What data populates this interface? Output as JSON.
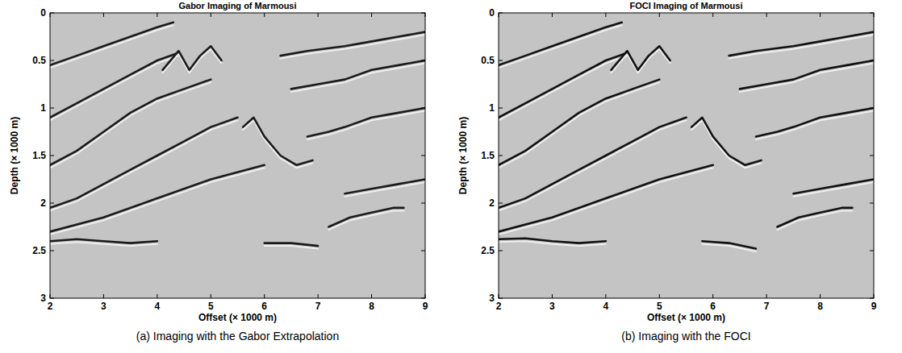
{
  "chart_data": [
    {
      "type": "line",
      "title": "Gabor Imaging of Marmousi",
      "x_label": "Offset (× 1000 m)",
      "y_label": "Depth (× 1000 m)",
      "caption": "(a) Imaging with the Gabor Extrapolation",
      "xlim": [
        2,
        9
      ],
      "xticks": [
        2,
        3,
        4,
        5,
        6,
        7,
        8,
        9
      ],
      "ylim": [
        0,
        3
      ],
      "yticks": [
        0,
        0.5,
        1,
        1.5,
        2,
        2.5,
        3
      ],
      "color": "#1a1a1a",
      "grid": false,
      "series": [
        {
          "x": [
            2,
            2.5,
            3,
            3.5,
            4,
            4.3
          ],
          "values": [
            0.55,
            0.45,
            0.35,
            0.25,
            0.15,
            0.1
          ]
        },
        {
          "x": [
            2,
            2.5,
            3,
            3.5,
            4,
            4.4
          ],
          "values": [
            1.1,
            0.95,
            0.8,
            0.65,
            0.5,
            0.42
          ]
        },
        {
          "x": [
            2,
            2.5,
            3,
            3.5,
            4,
            4.5,
            5
          ],
          "values": [
            1.6,
            1.45,
            1.25,
            1.05,
            0.9,
            0.8,
            0.7
          ]
        },
        {
          "x": [
            2,
            2.5,
            3,
            3.5,
            4,
            4.5,
            5,
            5.5
          ],
          "values": [
            2.05,
            1.95,
            1.8,
            1.65,
            1.5,
            1.35,
            1.2,
            1.1
          ]
        },
        {
          "x": [
            2,
            3,
            4,
            5,
            6
          ],
          "values": [
            2.3,
            2.15,
            1.95,
            1.75,
            1.6
          ]
        },
        {
          "x": [
            2,
            2.5,
            3,
            3.5,
            4
          ],
          "values": [
            2.4,
            2.38,
            2.4,
            2.42,
            2.4
          ]
        },
        {
          "x": [
            6,
            6.5,
            7
          ],
          "values": [
            2.42,
            2.42,
            2.45
          ]
        },
        {
          "x": [
            6.3,
            6.8,
            7.5,
            8,
            8.5,
            9
          ],
          "values": [
            0.45,
            0.4,
            0.35,
            0.3,
            0.25,
            0.2
          ]
        },
        {
          "x": [
            6.5,
            7,
            7.5,
            8,
            8.5,
            9
          ],
          "values": [
            0.8,
            0.75,
            0.7,
            0.6,
            0.55,
            0.5
          ]
        },
        {
          "x": [
            6.8,
            7.2,
            7.5,
            8,
            8.5,
            9
          ],
          "values": [
            1.3,
            1.25,
            1.2,
            1.1,
            1.05,
            1.0
          ]
        },
        {
          "x": [
            7.5,
            8,
            8.5,
            9
          ],
          "values": [
            1.9,
            1.85,
            1.8,
            1.75
          ]
        },
        {
          "x": [
            7.2,
            7.6,
            8,
            8.4,
            8.6
          ],
          "values": [
            2.25,
            2.15,
            2.1,
            2.05,
            2.05
          ]
        },
        {
          "x": [
            4.1,
            4.4,
            4.6,
            4.8,
            5,
            5.2
          ],
          "values": [
            0.6,
            0.4,
            0.6,
            0.45,
            0.35,
            0.5
          ]
        },
        {
          "x": [
            5.6,
            5.8,
            6,
            6.3,
            6.6,
            6.9
          ],
          "values": [
            1.2,
            1.1,
            1.3,
            1.5,
            1.6,
            1.55
          ]
        }
      ]
    },
    {
      "type": "line",
      "title": "FOCI Imaging of Marmousi",
      "x_label": "Offset (× 1000 m)",
      "y_label": "Depth (× 1000 m)",
      "caption": "(b) Imaging with the FOCI",
      "xlim": [
        2,
        9
      ],
      "xticks": [
        2,
        3,
        4,
        5,
        6,
        7,
        8,
        9
      ],
      "ylim": [
        0,
        3
      ],
      "yticks": [
        0,
        0.5,
        1,
        1.5,
        2,
        2.5,
        3
      ],
      "color": "#111111",
      "grid": false,
      "series": [
        {
          "x": [
            2,
            2.5,
            3,
            3.5,
            4,
            4.3
          ],
          "values": [
            0.55,
            0.45,
            0.35,
            0.25,
            0.15,
            0.1
          ]
        },
        {
          "x": [
            2,
            2.5,
            3,
            3.5,
            4,
            4.4
          ],
          "values": [
            1.1,
            0.95,
            0.8,
            0.65,
            0.5,
            0.42
          ]
        },
        {
          "x": [
            2,
            2.5,
            3,
            3.5,
            4,
            4.5,
            5
          ],
          "values": [
            1.6,
            1.45,
            1.25,
            1.05,
            0.9,
            0.8,
            0.7
          ]
        },
        {
          "x": [
            2,
            2.5,
            3,
            3.5,
            4,
            4.5,
            5,
            5.5
          ],
          "values": [
            2.05,
            1.95,
            1.8,
            1.65,
            1.5,
            1.35,
            1.2,
            1.1
          ]
        },
        {
          "x": [
            2,
            3,
            4,
            5,
            6
          ],
          "values": [
            2.3,
            2.15,
            1.95,
            1.75,
            1.6
          ]
        },
        {
          "x": [
            2,
            2.5,
            3,
            3.5,
            4
          ],
          "values": [
            2.38,
            2.37,
            2.4,
            2.42,
            2.4
          ]
        },
        {
          "x": [
            5.8,
            6.3,
            6.8
          ],
          "values": [
            2.4,
            2.42,
            2.48
          ]
        },
        {
          "x": [
            6.3,
            6.8,
            7.5,
            8,
            8.5,
            9
          ],
          "values": [
            0.45,
            0.4,
            0.35,
            0.3,
            0.25,
            0.2
          ]
        },
        {
          "x": [
            6.5,
            7,
            7.5,
            8,
            8.5,
            9
          ],
          "values": [
            0.8,
            0.75,
            0.7,
            0.6,
            0.55,
            0.5
          ]
        },
        {
          "x": [
            6.8,
            7.2,
            7.5,
            8,
            8.5,
            9
          ],
          "values": [
            1.3,
            1.25,
            1.2,
            1.1,
            1.05,
            1.0
          ]
        },
        {
          "x": [
            7.5,
            8,
            8.5,
            9
          ],
          "values": [
            1.9,
            1.85,
            1.8,
            1.75
          ]
        },
        {
          "x": [
            7.2,
            7.6,
            8,
            8.4,
            8.6
          ],
          "values": [
            2.25,
            2.15,
            2.1,
            2.05,
            2.05
          ]
        },
        {
          "x": [
            4.1,
            4.4,
            4.6,
            4.8,
            5,
            5.2
          ],
          "values": [
            0.6,
            0.4,
            0.6,
            0.45,
            0.35,
            0.5
          ]
        },
        {
          "x": [
            5.6,
            5.8,
            6,
            6.3,
            6.6,
            6.9
          ],
          "values": [
            1.2,
            1.1,
            1.3,
            1.5,
            1.6,
            1.55
          ]
        }
      ]
    }
  ]
}
